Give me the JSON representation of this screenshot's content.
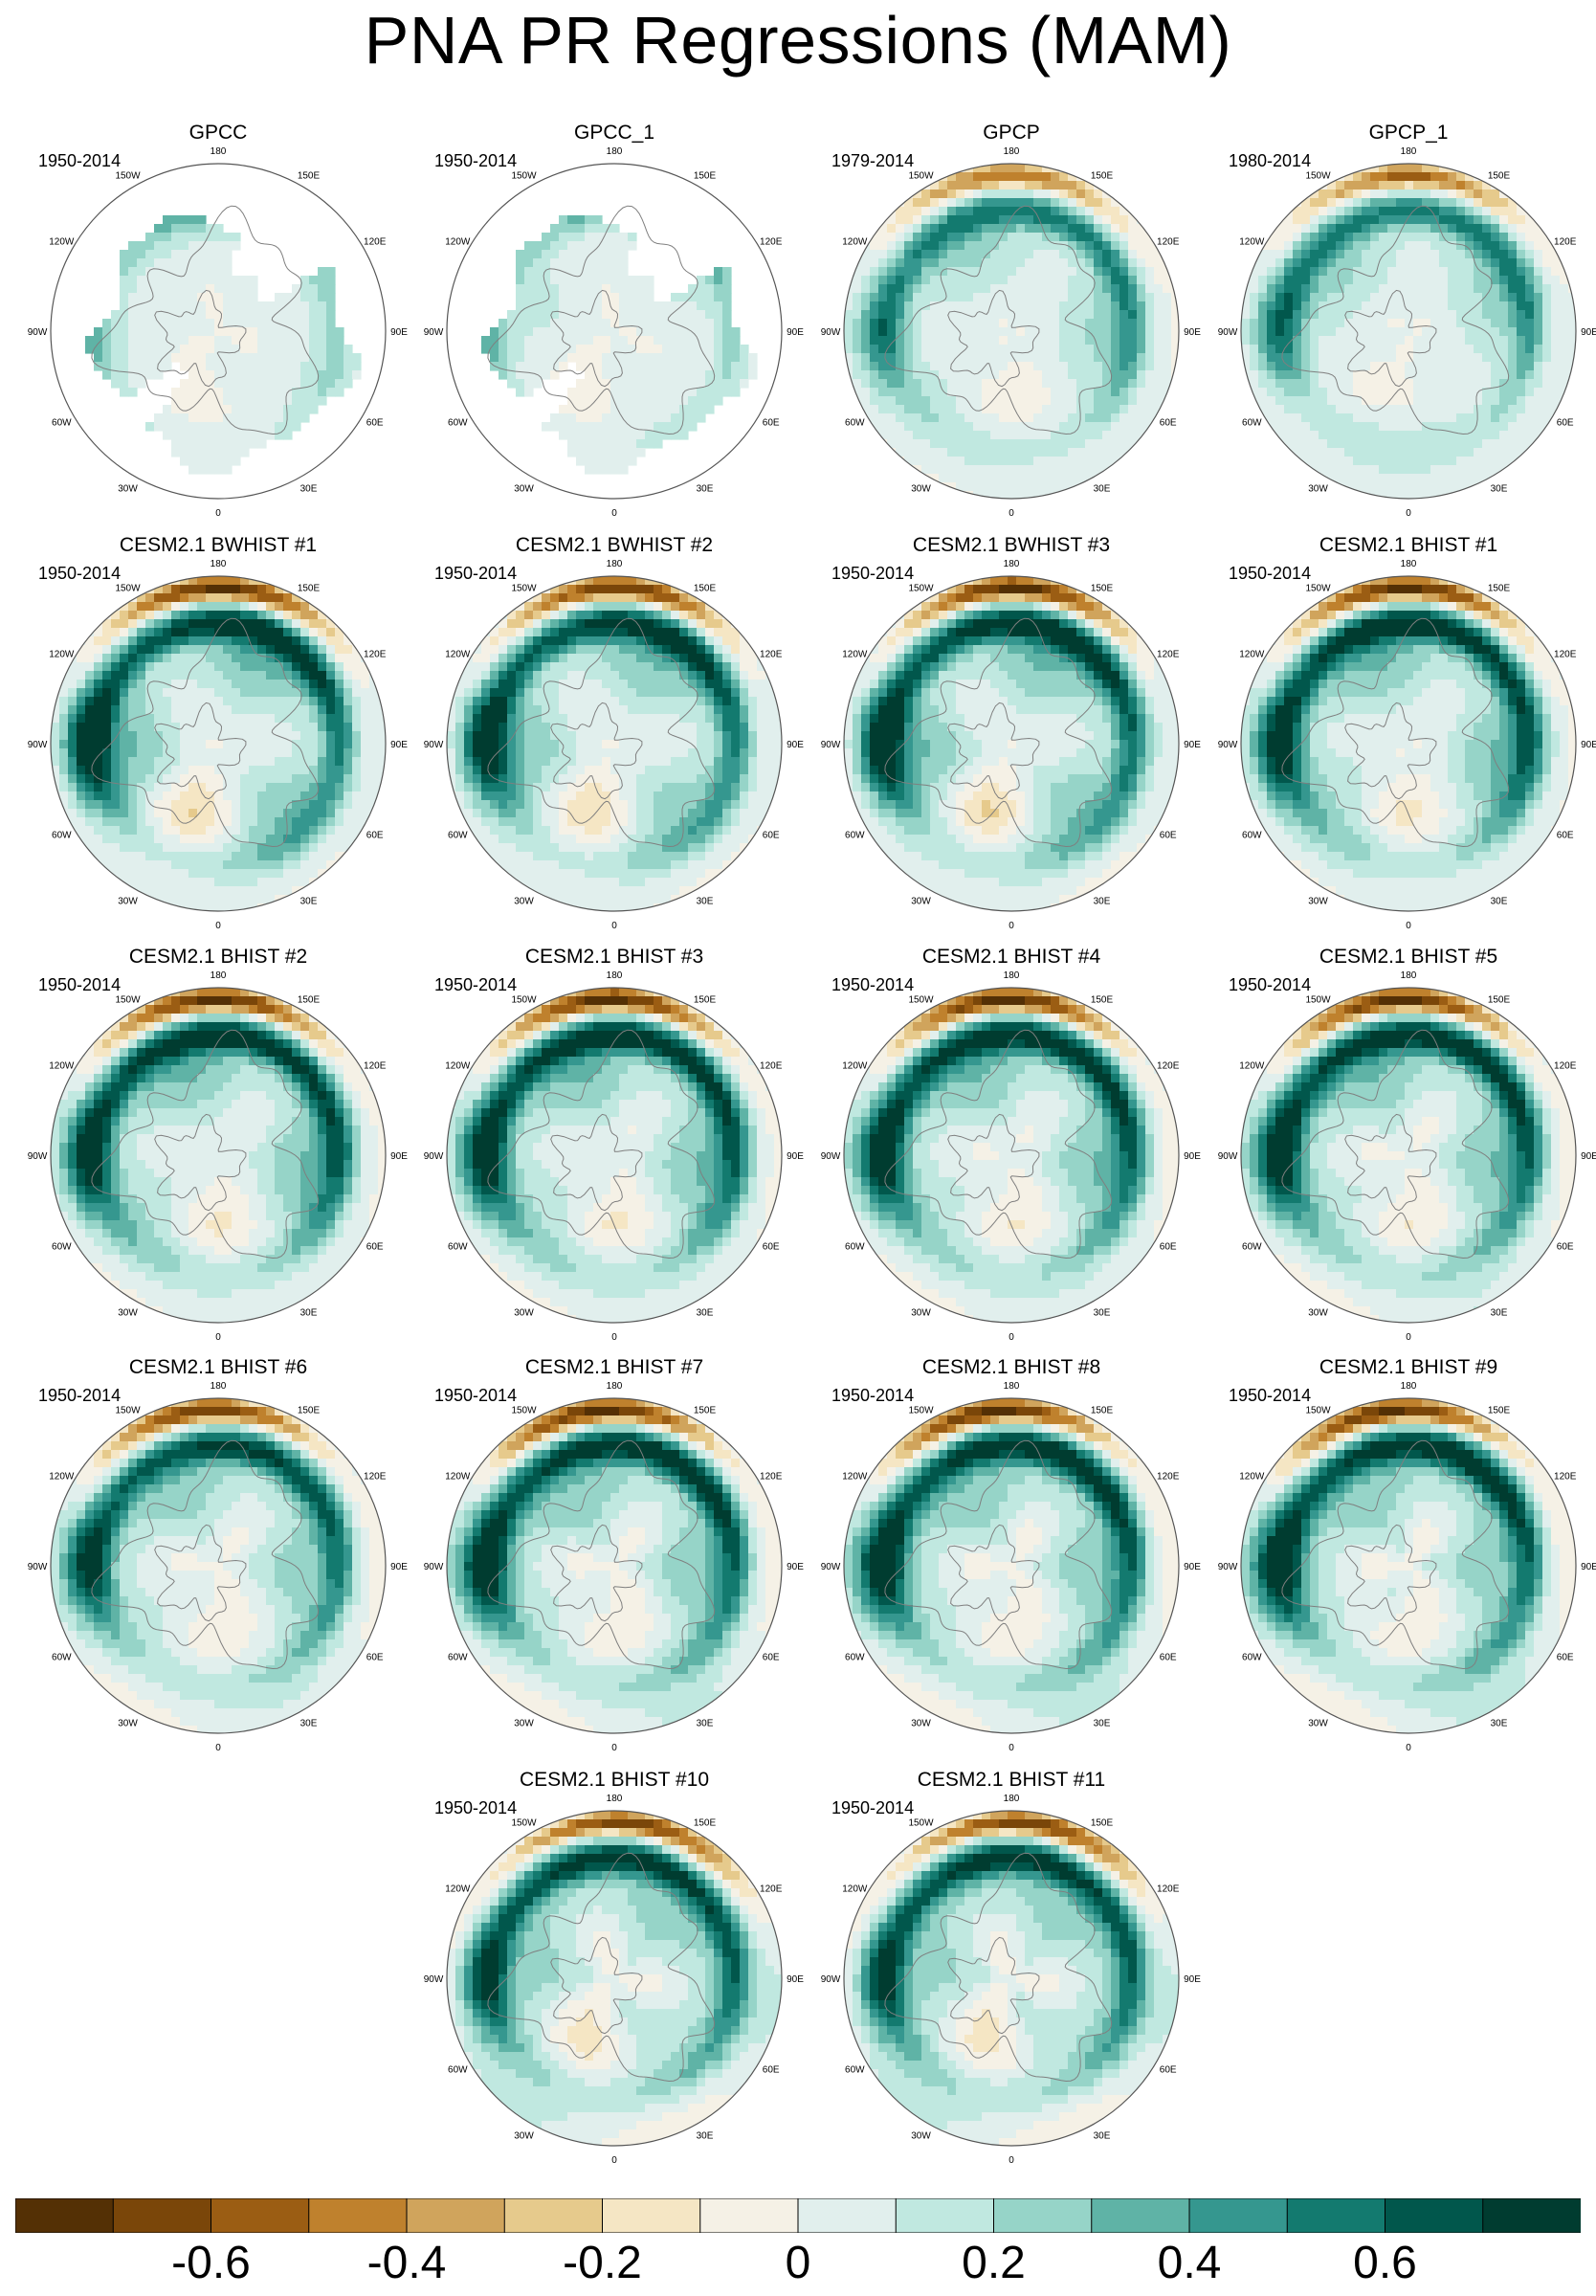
{
  "title": "PNA PR Regressions (MAM)",
  "chart_data": {
    "type": "heatmap",
    "projection": "north polar stereographic",
    "variable": "PR regression onto PNA index",
    "lon_labels": [
      "180",
      "150E",
      "120E",
      "90E",
      "60E",
      "30E",
      "0",
      "30W",
      "60W",
      "90W",
      "120W",
      "150W"
    ],
    "panels": [
      {
        "name": "GPCC",
        "period": "1950-2014",
        "coverage": "land",
        "amplitude": 0.35
      },
      {
        "name": "GPCC_1",
        "period": "1950-2014",
        "coverage": "land",
        "amplitude": 0.35
      },
      {
        "name": "GPCP",
        "period": "1979-2014",
        "coverage": "full",
        "amplitude": 0.6
      },
      {
        "name": "GPCP_1",
        "period": "1980-2014",
        "coverage": "full",
        "amplitude": 0.6
      },
      {
        "name": "CESM2.1 BWHIST #1",
        "period": "1950-2014",
        "coverage": "full",
        "amplitude": 0.85
      },
      {
        "name": "CESM2.1 BWHIST #2",
        "period": "1950-2014",
        "coverage": "full",
        "amplitude": 0.8
      },
      {
        "name": "CESM2.1 BWHIST #3",
        "period": "1950-2014",
        "coverage": "full",
        "amplitude": 0.85
      },
      {
        "name": "CESM2.1 BHIST #1",
        "period": "1950-2014",
        "coverage": "full",
        "amplitude": 0.85
      },
      {
        "name": "CESM2.1 BHIST #2",
        "period": "1950-2014",
        "coverage": "full",
        "amplitude": 0.85
      },
      {
        "name": "CESM2.1 BHIST #3",
        "period": "1950-2014",
        "coverage": "full",
        "amplitude": 0.85
      },
      {
        "name": "CESM2.1 BHIST #4",
        "period": "1950-2014",
        "coverage": "full",
        "amplitude": 0.85
      },
      {
        "name": "CESM2.1 BHIST #5",
        "period": "1950-2014",
        "coverage": "full",
        "amplitude": 0.85
      },
      {
        "name": "CESM2.1 BHIST #6",
        "period": "1950-2014",
        "coverage": "full",
        "amplitude": 0.75
      },
      {
        "name": "CESM2.1 BHIST #7",
        "period": "1950-2014",
        "coverage": "full",
        "amplitude": 0.85
      },
      {
        "name": "CESM2.1 BHIST #8",
        "period": "1950-2014",
        "coverage": "full",
        "amplitude": 0.85
      },
      {
        "name": "CESM2.1 BHIST #9",
        "period": "1950-2014",
        "coverage": "full",
        "amplitude": 0.85
      },
      {
        "name": "CESM2.1 BHIST #10",
        "period": "1950-2014",
        "coverage": "full",
        "amplitude": 0.8
      },
      {
        "name": "CESM2.1 BHIST #11",
        "period": "1950-2014",
        "coverage": "full",
        "amplitude": 0.8
      }
    ],
    "colorbar": {
      "levels": [
        -0.7,
        -0.6,
        -0.5,
        -0.4,
        -0.3,
        -0.2,
        -0.1,
        0,
        0.1,
        0.2,
        0.3,
        0.4,
        0.5,
        0.6,
        0.7
      ],
      "colors": [
        "#543005",
        "#7a4609",
        "#9b5d13",
        "#bf812d",
        "#d0a45c",
        "#e6ca8c",
        "#f5e6c4",
        "#f5f1e6",
        "#e1efed",
        "#c0e8e0",
        "#96d4c8",
        "#5fb3a6",
        "#35978f",
        "#137a6f",
        "#01574c",
        "#003c30"
      ],
      "tick_labels": [
        "-0.6",
        "-0.4",
        "-0.2",
        "0",
        "0.2",
        "0.4",
        "0.6"
      ],
      "tick_values": [
        -0.6,
        -0.4,
        -0.2,
        0,
        0.2,
        0.4,
        0.6
      ]
    }
  }
}
